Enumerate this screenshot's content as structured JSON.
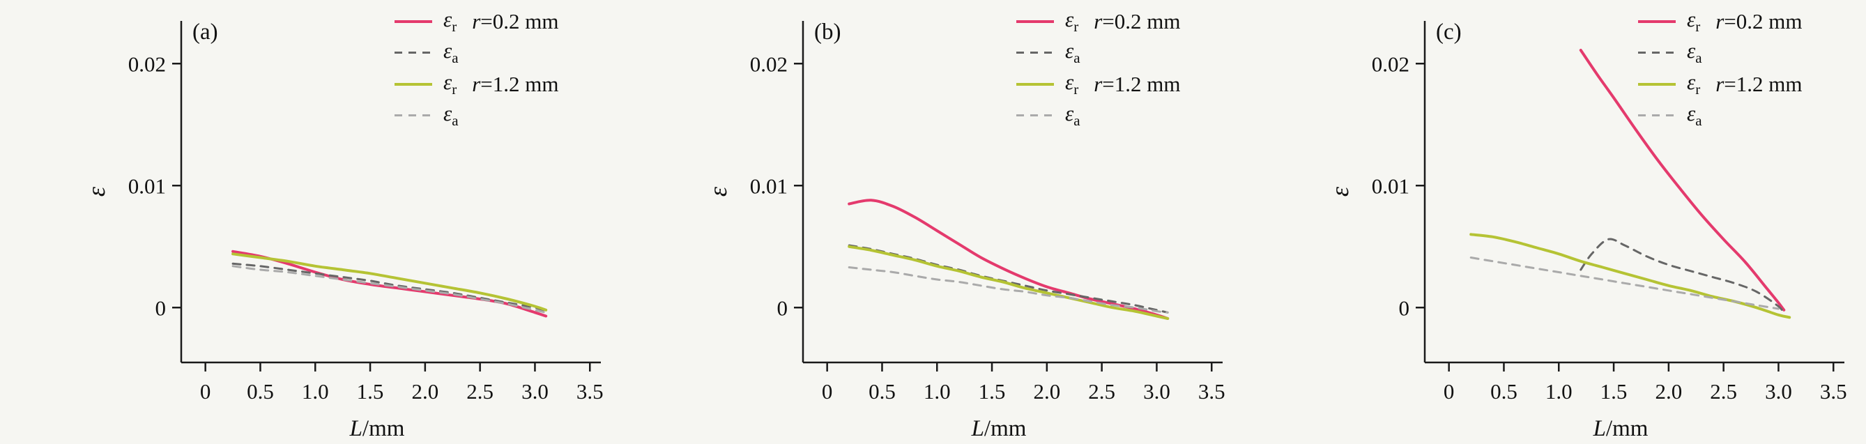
{
  "figure": {
    "panels": [
      {
        "label": "(a)"
      },
      {
        "label": "(b)"
      },
      {
        "label": "(c)"
      }
    ]
  },
  "legend": {
    "eps": "ε",
    "sub_r": "r",
    "sub_a": "a",
    "g1_var": "r",
    "g1_rest": "=0.2 mm",
    "g2_var": "r",
    "g2_rest": "=1.2 mm"
  },
  "colors": {
    "r02_solid": "#e43a6d",
    "r02_dashed": "#666666",
    "r12_solid": "#b5c334",
    "r12_dashed": "#aaaaaa",
    "axis": "#1a1a1a",
    "background": "#f6f6f2"
  },
  "chart_data": [
    {
      "type": "line",
      "panel": "(a)",
      "xlabel_var": "L",
      "xlabel_rest": "/mm",
      "ylabel": "ε",
      "xlim": [
        0,
        3.5
      ],
      "ylim": [
        0,
        0.02
      ],
      "x_ticks": {
        "values": [
          0,
          0.5,
          1.0,
          1.5,
          2.0,
          2.5,
          3.0,
          3.5
        ],
        "labels": [
          "0",
          "0.5",
          "1.0",
          "1.5",
          "2.0",
          "2.5",
          "3.0",
          "3.5"
        ]
      },
      "y_ticks": {
        "values": [
          0,
          0.01,
          0.02
        ],
        "labels": [
          "0",
          "0.01",
          "0.02"
        ]
      },
      "series": [
        {
          "name": "εr r=0.2 mm",
          "color_key": "r02_solid",
          "dashed": false,
          "x": [
            0.25,
            0.5,
            0.75,
            1.0,
            1.25,
            1.5,
            1.75,
            2.0,
            2.25,
            2.5,
            2.75,
            3.0,
            3.1
          ],
          "y": [
            0.0046,
            0.0042,
            0.0036,
            0.0029,
            0.0023,
            0.0019,
            0.0016,
            0.0013,
            0.001,
            0.0007,
            0.0003,
            -0.0004,
            -0.0007
          ]
        },
        {
          "name": "εa r=0.2 mm",
          "color_key": "r02_dashed",
          "dashed": true,
          "x": [
            0.25,
            0.5,
            0.75,
            1.0,
            1.25,
            1.5,
            1.75,
            2.0,
            2.25,
            2.5,
            2.75,
            3.0,
            3.1
          ],
          "y": [
            0.0036,
            0.0034,
            0.0031,
            0.0028,
            0.0025,
            0.0022,
            0.0018,
            0.0015,
            0.0012,
            0.0008,
            0.0004,
            0.0,
            -0.0003
          ]
        },
        {
          "name": "εr r=1.2 mm",
          "color_key": "r12_solid",
          "dashed": false,
          "x": [
            0.25,
            0.5,
            0.75,
            1.0,
            1.25,
            1.5,
            1.75,
            2.0,
            2.25,
            2.5,
            2.75,
            3.0,
            3.1
          ],
          "y": [
            0.0044,
            0.0041,
            0.0038,
            0.0034,
            0.0031,
            0.0028,
            0.0024,
            0.002,
            0.0016,
            0.0012,
            0.0007,
            0.0001,
            -0.0002
          ]
        },
        {
          "name": "εa r=1.2 mm",
          "color_key": "r12_dashed",
          "dashed": true,
          "x": [
            0.25,
            0.5,
            0.75,
            1.0,
            1.25,
            1.5,
            1.75,
            2.0,
            2.25,
            2.5,
            2.75,
            3.0,
            3.1
          ],
          "y": [
            0.0034,
            0.0031,
            0.0029,
            0.0026,
            0.0023,
            0.002,
            0.0017,
            0.0014,
            0.0011,
            0.0007,
            0.0003,
            -0.0002,
            -0.0004
          ]
        }
      ]
    },
    {
      "type": "line",
      "panel": "(b)",
      "xlabel_var": "L",
      "xlabel_rest": "/mm",
      "ylabel": "ε",
      "xlim": [
        0,
        3.5
      ],
      "ylim": [
        0,
        0.02
      ],
      "x_ticks": {
        "values": [
          0,
          0.5,
          1.0,
          1.5,
          2.0,
          2.5,
          3.0,
          3.5
        ],
        "labels": [
          "0",
          "0.5",
          "1.0",
          "1.5",
          "2.0",
          "2.5",
          "3.0",
          "3.5"
        ]
      },
      "y_ticks": {
        "values": [
          0,
          0.01,
          0.02
        ],
        "labels": [
          "0",
          "0.01",
          "0.02"
        ]
      },
      "series": [
        {
          "name": "εr r=0.2 mm",
          "color_key": "r02_solid",
          "dashed": false,
          "x": [
            0.2,
            0.4,
            0.6,
            0.8,
            1.0,
            1.2,
            1.4,
            1.6,
            1.8,
            2.0,
            2.2,
            2.4,
            2.6,
            2.8,
            3.0,
            3.1
          ],
          "y": [
            0.0085,
            0.0088,
            0.0083,
            0.0074,
            0.0063,
            0.0052,
            0.0041,
            0.0032,
            0.0024,
            0.0017,
            0.0012,
            0.0007,
            0.0003,
            -0.0001,
            -0.0006,
            -0.0009
          ]
        },
        {
          "name": "εa r=0.2 mm",
          "color_key": "r02_dashed",
          "dashed": true,
          "x": [
            0.2,
            0.4,
            0.6,
            0.8,
            1.0,
            1.2,
            1.4,
            1.6,
            1.8,
            2.0,
            2.2,
            2.4,
            2.6,
            2.8,
            3.0,
            3.1
          ],
          "y": [
            0.0051,
            0.0048,
            0.0044,
            0.004,
            0.0035,
            0.0031,
            0.0026,
            0.0022,
            0.0018,
            0.0014,
            0.0011,
            0.0008,
            0.0005,
            0.0002,
            -0.0002,
            -0.0004
          ]
        },
        {
          "name": "εr r=1.2 mm",
          "color_key": "r12_solid",
          "dashed": false,
          "x": [
            0.2,
            0.4,
            0.6,
            0.8,
            1.0,
            1.2,
            1.4,
            1.6,
            1.8,
            2.0,
            2.2,
            2.4,
            2.6,
            2.8,
            3.0,
            3.1
          ],
          "y": [
            0.005,
            0.0047,
            0.0043,
            0.0039,
            0.0034,
            0.003,
            0.0025,
            0.0021,
            0.0016,
            0.0012,
            0.0008,
            0.0004,
            0.0,
            -0.0003,
            -0.0007,
            -0.0009
          ]
        },
        {
          "name": "εa r=1.2 mm",
          "color_key": "r12_dashed",
          "dashed": true,
          "x": [
            0.2,
            0.4,
            0.6,
            0.8,
            1.0,
            1.2,
            1.4,
            1.6,
            1.8,
            2.0,
            2.2,
            2.4,
            2.6,
            2.8,
            3.0,
            3.1
          ],
          "y": [
            0.0033,
            0.0031,
            0.0029,
            0.0026,
            0.0023,
            0.0021,
            0.0018,
            0.0015,
            0.0013,
            0.001,
            0.0008,
            0.0005,
            0.0002,
            0.0,
            -0.0003,
            -0.0004
          ]
        }
      ]
    },
    {
      "type": "line",
      "panel": "(c)",
      "xlabel_var": "L",
      "xlabel_rest": "/mm",
      "ylabel": "ε",
      "xlim": [
        0,
        3.5
      ],
      "ylim": [
        0,
        0.02
      ],
      "x_ticks": {
        "values": [
          0,
          0.5,
          1.0,
          1.5,
          2.0,
          2.5,
          3.0,
          3.5
        ],
        "labels": [
          "0",
          "0.5",
          "1.0",
          "1.5",
          "2.0",
          "2.5",
          "3.0",
          "3.5"
        ]
      },
      "y_ticks": {
        "values": [
          0,
          0.01,
          0.02
        ],
        "labels": [
          "0",
          "0.01",
          "0.02"
        ]
      },
      "series": [
        {
          "name": "εr r=0.2 mm",
          "color_key": "r02_solid",
          "dashed": false,
          "x": [
            1.2,
            1.35,
            1.5,
            1.7,
            1.9,
            2.1,
            2.3,
            2.5,
            2.7,
            2.9,
            3.0,
            3.05
          ],
          "y": [
            0.0211,
            0.0191,
            0.0172,
            0.0146,
            0.0121,
            0.0098,
            0.0076,
            0.0056,
            0.0037,
            0.0015,
            0.0004,
            -0.0002
          ]
        },
        {
          "name": "εa r=0.2 mm",
          "color_key": "r02_dashed",
          "dashed": true,
          "x": [
            1.2,
            1.3,
            1.45,
            1.6,
            1.8,
            2.0,
            2.2,
            2.4,
            2.6,
            2.8,
            3.0,
            3.05
          ],
          "y": [
            0.0031,
            0.0044,
            0.0056,
            0.0051,
            0.0042,
            0.0035,
            0.003,
            0.0025,
            0.002,
            0.0013,
            0.0001,
            -0.0005
          ]
        },
        {
          "name": "εr r=1.2 mm",
          "color_key": "r12_solid",
          "dashed": false,
          "x": [
            0.2,
            0.4,
            0.6,
            0.8,
            1.0,
            1.2,
            1.4,
            1.6,
            1.8,
            2.0,
            2.2,
            2.4,
            2.6,
            2.8,
            3.0,
            3.1
          ],
          "y": [
            0.006,
            0.0058,
            0.0054,
            0.0049,
            0.0044,
            0.0038,
            0.0033,
            0.0028,
            0.0023,
            0.0018,
            0.0014,
            0.0009,
            0.0005,
            0.0,
            -0.0006,
            -0.0008
          ]
        },
        {
          "name": "εa r=1.2 mm",
          "color_key": "r12_dashed",
          "dashed": true,
          "x": [
            0.2,
            0.4,
            0.6,
            0.8,
            1.0,
            1.2,
            1.4,
            1.6,
            1.8,
            2.0,
            2.2,
            2.4,
            2.6,
            2.8,
            3.0
          ],
          "y": [
            0.0041,
            0.0038,
            0.0035,
            0.0032,
            0.0029,
            0.0026,
            0.0023,
            0.002,
            0.0017,
            0.0014,
            0.0011,
            0.0008,
            0.0005,
            0.0002,
            -0.0001
          ]
        }
      ]
    }
  ]
}
